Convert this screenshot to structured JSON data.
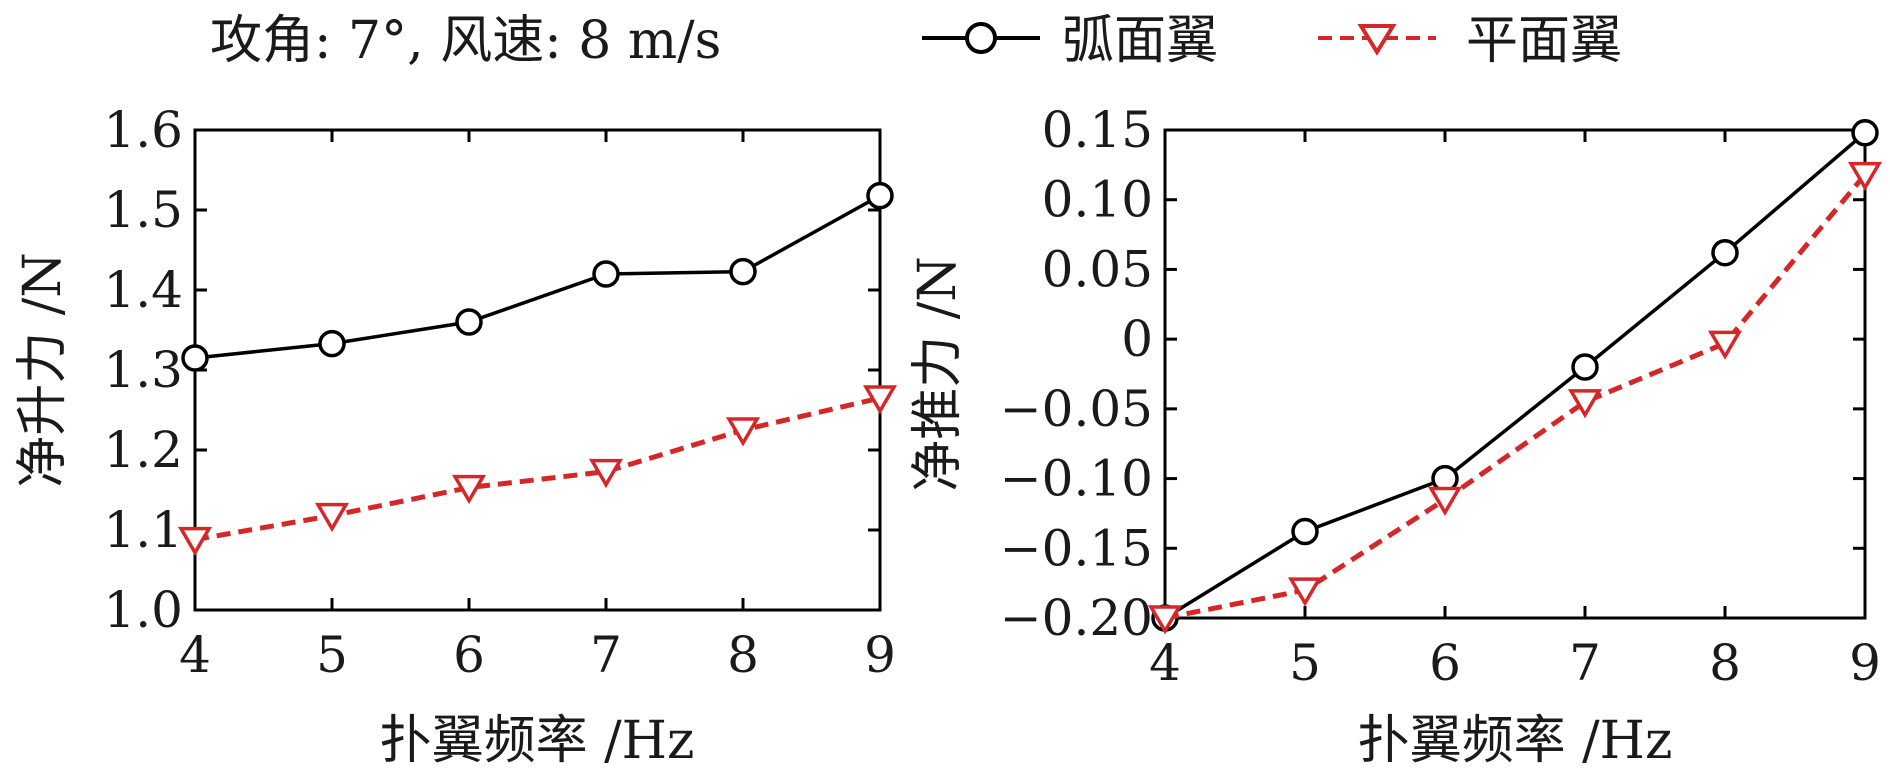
{
  "legend_title": "攻角: 7°, 风速: 8 m/s",
  "chart_data": [
    {
      "type": "line",
      "xlabel": "扑翼频率 /Hz",
      "ylabel": "净升力 /N",
      "x": [
        4,
        5,
        6,
        7,
        8,
        9
      ],
      "xlim": [
        4,
        9
      ],
      "ylim": [
        1.0,
        1.6
      ],
      "xticks": [
        "4",
        "5",
        "6",
        "7",
        "8",
        "9"
      ],
      "yticks": [
        "1.0",
        "1.1",
        "1.2",
        "1.3",
        "1.4",
        "1.5",
        "1.6"
      ],
      "grid": false,
      "legend": "top",
      "series": [
        {
          "name": "弧面翼",
          "color": "#000000",
          "marker": "circle",
          "line": "solid",
          "values": [
            1.315,
            1.333,
            1.36,
            1.42,
            1.423,
            1.518
          ]
        },
        {
          "name": "平面翼",
          "color": "#d62728",
          "marker": "triangle-down",
          "line": "dashed",
          "values": [
            1.088,
            1.118,
            1.153,
            1.173,
            1.225,
            1.265
          ]
        }
      ]
    },
    {
      "type": "line",
      "xlabel": "扑翼频率 /Hz",
      "ylabel": "净推力 /N",
      "x": [
        4,
        5,
        6,
        7,
        8,
        9
      ],
      "xlim": [
        4,
        9
      ],
      "ylim": [
        -0.2,
        0.15
      ],
      "xticks": [
        "4",
        "5",
        "6",
        "7",
        "8",
        "9"
      ],
      "yticks": [
        "-0.20",
        "-0.15",
        "-0.10",
        "-0.05",
        "0",
        "0.05",
        "0.10",
        "0.15"
      ],
      "grid": false,
      "legend": "top",
      "series": [
        {
          "name": "弧面翼",
          "color": "#000000",
          "marker": "circle",
          "line": "solid",
          "values": [
            -0.2,
            -0.138,
            -0.1,
            -0.02,
            0.062,
            0.148
          ]
        },
        {
          "name": "平面翼",
          "color": "#d62728",
          "marker": "triangle-down",
          "line": "dashed",
          "values": [
            -0.2,
            -0.18,
            -0.115,
            -0.045,
            -0.003,
            0.118
          ]
        }
      ]
    }
  ]
}
